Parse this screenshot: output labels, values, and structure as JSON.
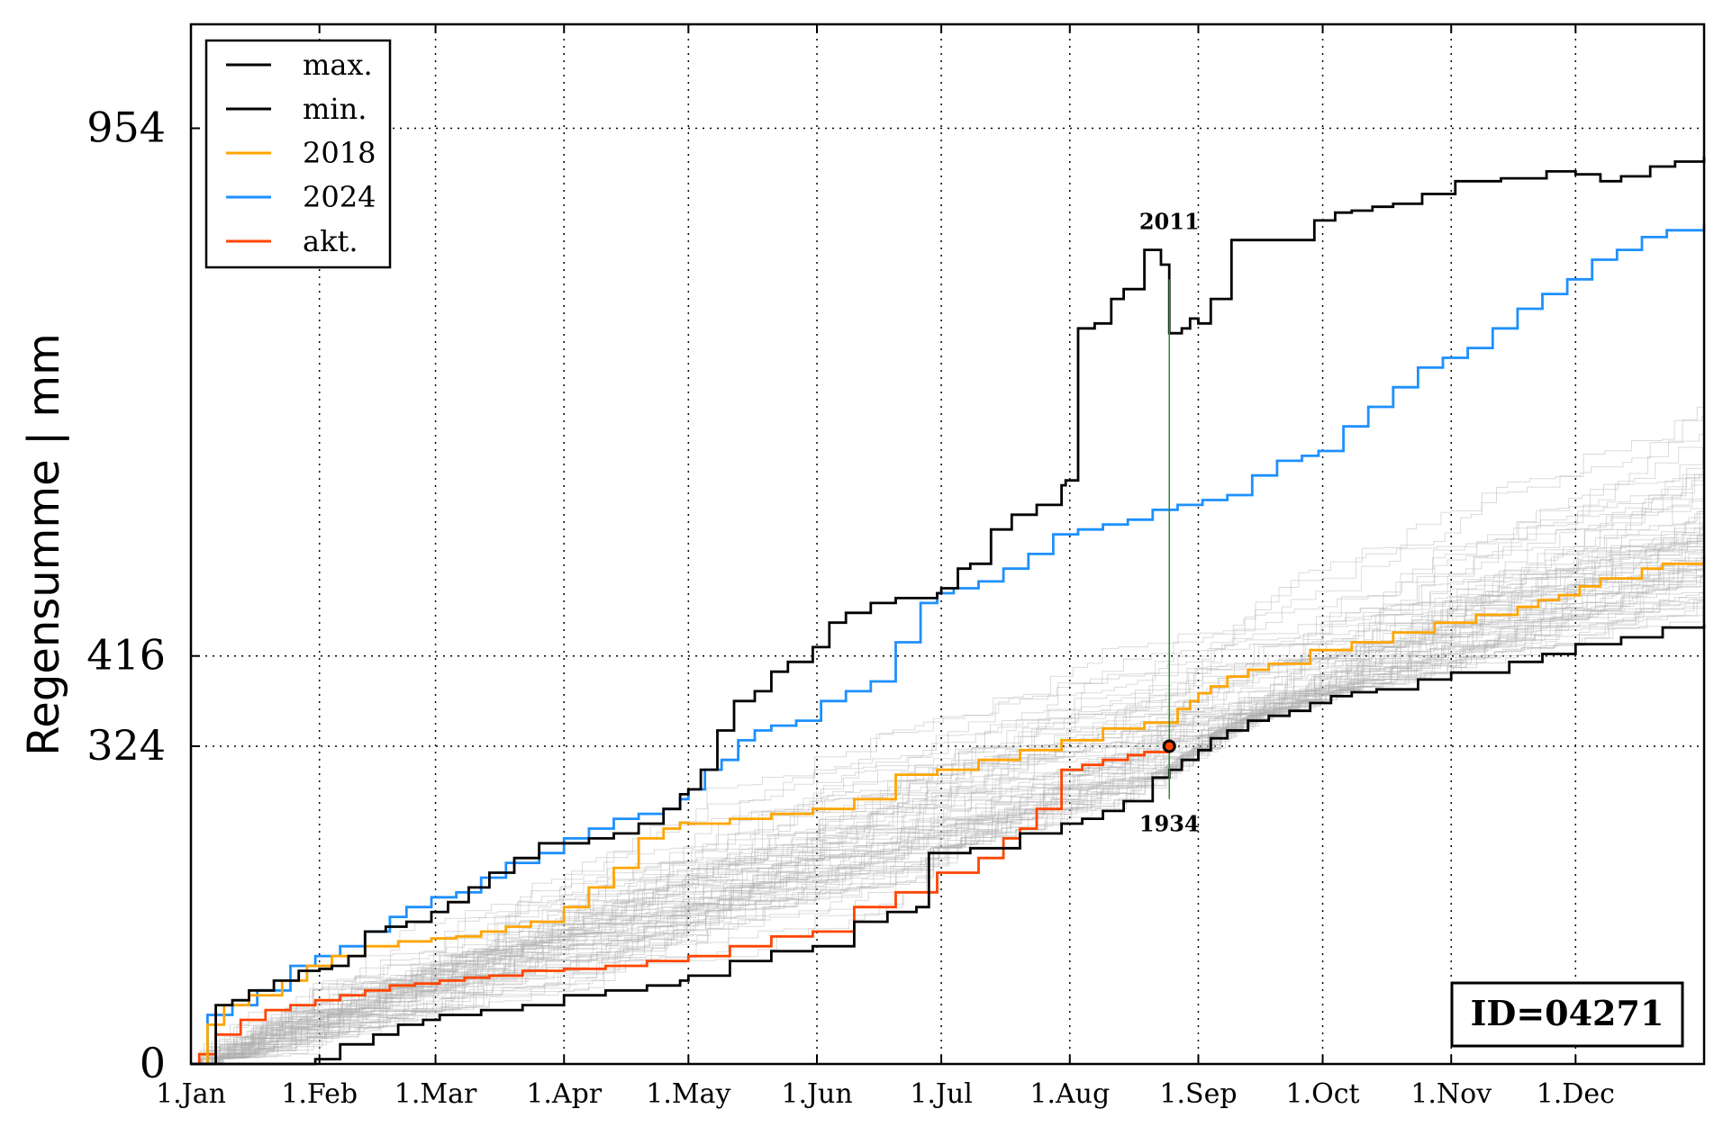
{
  "chart_data": {
    "type": "line",
    "ylabel": "Regensumme | mm",
    "xlabel": "",
    "xlim": [
      0,
      365
    ],
    "ylim": [
      0,
      1060
    ],
    "x_ticks": [
      {
        "label": "1.Jan",
        "day": 0
      },
      {
        "label": "1.Feb",
        "day": 31
      },
      {
        "label": "1.Mar",
        "day": 59
      },
      {
        "label": "1.Apr",
        "day": 90
      },
      {
        "label": "1.May",
        "day": 120
      },
      {
        "label": "1.Jun",
        "day": 151
      },
      {
        "label": "1.Jul",
        "day": 181
      },
      {
        "label": "1.Aug",
        "day": 212
      },
      {
        "label": "1.Sep",
        "day": 243
      },
      {
        "label": "1.Oct",
        "day": 273
      },
      {
        "label": "1.Nov",
        "day": 304
      },
      {
        "label": "1.Dec",
        "day": 334
      }
    ],
    "y_ticks": [
      {
        "label": "0",
        "value": 0
      },
      {
        "label": "324",
        "value": 324
      },
      {
        "label": "416",
        "value": 416
      },
      {
        "label": "954",
        "value": 954
      }
    ],
    "grid": true,
    "legend_position": "top-left",
    "series": [
      {
        "name": "max.",
        "color": "#000000",
        "x": [
          0,
          6,
          10,
          14,
          20,
          26,
          31,
          34,
          38,
          42,
          47,
          52,
          58,
          62,
          67,
          72,
          78,
          84,
          90,
          96,
          102,
          108,
          114,
          118,
          120,
          123,
          127,
          131,
          136,
          140,
          144,
          150,
          154,
          158,
          164,
          170,
          180,
          181,
          185,
          188,
          193,
          198,
          204,
          210,
          211,
          214,
          218,
          222,
          225,
          230,
          234,
          236,
          239,
          241,
          243,
          246,
          251,
          258,
          264,
          271,
          276,
          280,
          285,
          290,
          297,
          305,
          316,
          327,
          334,
          340,
          345,
          352,
          358,
          365
        ],
        "y": [
          0,
          60,
          65,
          75,
          85,
          95,
          97,
          100,
          110,
          135,
          140,
          145,
          155,
          165,
          180,
          195,
          210,
          225,
          225,
          230,
          235,
          245,
          260,
          275,
          280,
          300,
          340,
          370,
          380,
          400,
          410,
          425,
          450,
          460,
          470,
          475,
          480,
          485,
          505,
          510,
          545,
          560,
          570,
          590,
          595,
          750,
          755,
          780,
          790,
          830,
          815,
          745,
          750,
          760,
          755,
          780,
          840,
          840,
          840,
          860,
          868,
          870,
          874,
          877,
          887,
          900,
          903,
          910,
          907,
          900,
          905,
          915,
          920,
          925
        ]
      },
      {
        "name": "min.",
        "color": "#000000",
        "x": [
          0,
          30,
          36,
          44,
          50,
          56,
          60,
          70,
          80,
          90,
          100,
          110,
          118,
          120,
          130,
          140,
          150,
          160,
          168,
          175,
          178,
          188,
          200,
          210,
          215,
          220,
          225,
          232,
          236,
          239,
          243,
          246,
          250,
          255,
          260,
          265,
          270,
          275,
          280,
          286,
          296,
          304,
          318,
          326,
          334,
          345,
          355,
          365
        ],
        "y": [
          0,
          5,
          20,
          30,
          40,
          45,
          50,
          55,
          60,
          70,
          75,
          80,
          85,
          90,
          105,
          115,
          120,
          145,
          155,
          160,
          215,
          220,
          235,
          245,
          250,
          258,
          268,
          292,
          300,
          310,
          320,
          332,
          340,
          350,
          355,
          360,
          368,
          375,
          379,
          382,
          392,
          399,
          410,
          418,
          428,
          435,
          445,
          448
        ]
      },
      {
        "name": "2018",
        "color": "#ffa500",
        "x": [
          0,
          4,
          8,
          14,
          22,
          28,
          34,
          42,
          50,
          58,
          64,
          70,
          76,
          82,
          90,
          96,
          102,
          108,
          114,
          118,
          120,
          130,
          140,
          150,
          160,
          170,
          180,
          190,
          200,
          210,
          220,
          230,
          238,
          241,
          243,
          246,
          250,
          255,
          260,
          270,
          280,
          290,
          300,
          310,
          320,
          325,
          330,
          335,
          340,
          350,
          355,
          365
        ],
        "y": [
          0,
          40,
          60,
          70,
          85,
          100,
          110,
          120,
          125,
          128,
          130,
          135,
          140,
          145,
          160,
          180,
          200,
          230,
          240,
          246,
          245,
          250,
          255,
          260,
          270,
          295,
          300,
          310,
          320,
          330,
          342,
          348,
          362,
          370,
          378,
          385,
          395,
          402,
          408,
          422,
          430,
          440,
          450,
          458,
          466,
          473,
          478,
          487,
          495,
          505,
          510,
          517
        ]
      },
      {
        "name": "2024",
        "color": "#1e90ff",
        "x": [
          0,
          4,
          10,
          16,
          24,
          30,
          36,
          42,
          48,
          52,
          58,
          64,
          70,
          76,
          84,
          90,
          96,
          102,
          108,
          114,
          118,
          120,
          124,
          128,
          132,
          136,
          140,
          146,
          152,
          158,
          164,
          170,
          176,
          180,
          184,
          190,
          196,
          202,
          208,
          214,
          220,
          226,
          232,
          238,
          244,
          250,
          256,
          262,
          268,
          272,
          278,
          284,
          290,
          296,
          302,
          308,
          314,
          320,
          326,
          332,
          338,
          344,
          350,
          356,
          365
        ],
        "y": [
          0,
          50,
          60,
          75,
          100,
          110,
          120,
          135,
          150,
          160,
          170,
          175,
          190,
          205,
          215,
          230,
          240,
          250,
          255,
          260,
          270,
          280,
          300,
          310,
          330,
          340,
          345,
          350,
          370,
          380,
          390,
          430,
          470,
          480,
          485,
          492,
          505,
          520,
          540,
          545,
          550,
          555,
          565,
          570,
          575,
          580,
          600,
          615,
          620,
          625,
          650,
          670,
          690,
          710,
          720,
          730,
          750,
          770,
          785,
          800,
          820,
          830,
          843,
          850,
          856
        ]
      },
      {
        "name": "akt.",
        "color": "#ff4500",
        "x": [
          0,
          2,
          6,
          12,
          18,
          24,
          30,
          36,
          42,
          48,
          54,
          60,
          66,
          72,
          80,
          90,
          100,
          110,
          120,
          130,
          140,
          150,
          160,
          170,
          180,
          190,
          196,
          200,
          204,
          210,
          215,
          220,
          226,
          230,
          236
        ],
        "y": [
          0,
          10,
          30,
          45,
          55,
          60,
          65,
          70,
          75,
          80,
          82,
          85,
          88,
          90,
          95,
          97,
          100,
          105,
          110,
          120,
          130,
          135,
          160,
          175,
          195,
          210,
          230,
          240,
          260,
          300,
          305,
          310,
          315,
          318,
          324
        ]
      }
    ],
    "background_series_color": "#b0b0b0",
    "annotations": [
      {
        "text": "2011",
        "x": 236,
        "y": 840
      },
      {
        "text": "1934",
        "x": 236,
        "y": 272
      }
    ],
    "marker": {
      "x": 236,
      "y": 324,
      "line_from": 270,
      "line_to": 800,
      "line_color": "#2e8b2e"
    },
    "id_box": "ID=04271"
  }
}
